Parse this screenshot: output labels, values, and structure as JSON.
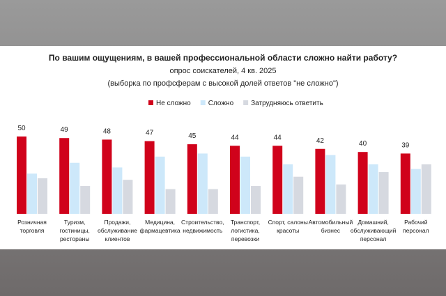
{
  "chart_data": {
    "type": "grouped-bar",
    "title": "По вашим ощущениям, в вашей профессиональной области сложно найти работу?",
    "subtitle": "опрос соискателей, 4 кв. 2025",
    "note": "(выборка по профсферам с высокой долей ответов \"не сложно\")",
    "categories": [
      "Розничная\nторговля",
      "Туризм,\nгостиницы,\nрестораны",
      "Продажи,\nобслуживание\nклиентов",
      "Медицина,\nфармацевтика",
      "Строительство,\nнедвижимость",
      "Транспорт,\nлогистика,\nперевозки",
      "Спорт, салоны\nкрасоты",
      "Автомобильный\nбизнес",
      "Домашний,\nобслуживающий\nперсонал",
      "Рабочий\nперсонал"
    ],
    "series": [
      {
        "name": "Не сложно",
        "color": "#d0021b",
        "values": [
          50,
          49,
          48,
          47,
          45,
          44,
          44,
          42,
          40,
          39
        ],
        "show_labels": true
      },
      {
        "name": "Сложно",
        "color": "#cde8fa",
        "values": [
          26,
          33,
          30,
          37,
          39,
          37,
          32,
          38,
          32,
          29
        ]
      },
      {
        "name": "Затрудняюсь ответить",
        "color": "#d6d9e0",
        "values": [
          23,
          18,
          22,
          16,
          16,
          18,
          24,
          19,
          27,
          32
        ]
      }
    ]
  }
}
